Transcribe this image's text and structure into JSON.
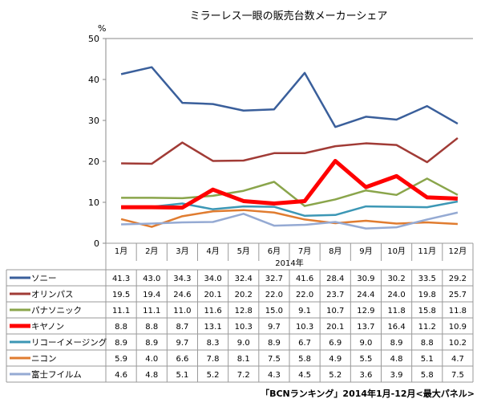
{
  "chart_data": {
    "type": "line",
    "title": "ミラーレス一眼の販売台数メーカーシェア",
    "ylabel": "%",
    "xlabel": "2014年",
    "ylim": [
      0,
      50
    ],
    "yticks": [
      "0",
      "10",
      "20",
      "30",
      "40",
      "50"
    ],
    "categories": [
      "1月",
      "2月",
      "3月",
      "4月",
      "5月",
      "6月",
      "7月",
      "8月",
      "9月",
      "10月",
      "11月",
      "12月"
    ],
    "series": [
      {
        "name": "ソニー",
        "color": "#3a5f9b",
        "values": [
          41.3,
          43.0,
          34.3,
          34.0,
          32.4,
          32.7,
          41.6,
          28.4,
          30.9,
          30.2,
          33.5,
          29.2
        ]
      },
      {
        "name": "オリンパス",
        "color": "#a13b36",
        "values": [
          19.5,
          19.4,
          24.6,
          20.1,
          20.2,
          22.0,
          22.0,
          23.7,
          24.4,
          24.0,
          19.8,
          25.7
        ]
      },
      {
        "name": "パナソニック",
        "color": "#8aa54b",
        "values": [
          11.1,
          11.1,
          11.0,
          11.6,
          12.8,
          15.0,
          9.1,
          10.7,
          12.9,
          11.8,
          15.8,
          11.8
        ]
      },
      {
        "name": "キヤノン",
        "color": "#ff0000",
        "values": [
          8.8,
          8.8,
          8.7,
          13.1,
          10.3,
          9.7,
          10.3,
          20.1,
          13.7,
          16.4,
          11.2,
          10.9
        ]
      },
      {
        "name": "リコーイメージング",
        "color": "#3c97b5",
        "values": [
          8.9,
          8.9,
          9.7,
          8.3,
          9.0,
          8.9,
          6.7,
          6.9,
          9.0,
          8.9,
          8.8,
          10.2
        ]
      },
      {
        "name": "ニコン",
        "color": "#e07c30",
        "values": [
          5.9,
          4.0,
          6.6,
          7.8,
          8.1,
          7.5,
          5.8,
          4.9,
          5.5,
          4.8,
          5.1,
          4.7
        ]
      },
      {
        "name": "富士フイルム",
        "color": "#95aad3",
        "values": [
          4.6,
          4.8,
          5.1,
          5.2,
          7.2,
          4.3,
          4.5,
          5.2,
          3.6,
          3.9,
          5.8,
          7.5
        ]
      }
    ],
    "grid": false,
    "legend": "table-below"
  },
  "source": "「BCNランキング」2014年1月-12月<最大パネル>"
}
